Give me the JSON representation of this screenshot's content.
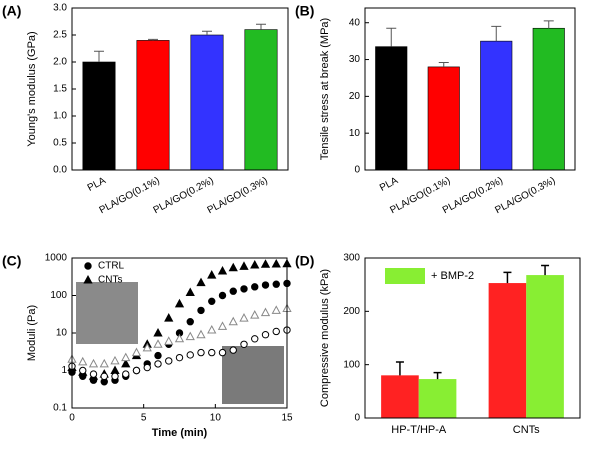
{
  "chart_data": [
    {
      "type": "bar",
      "label": "(A)",
      "ylabel": "Young's modulus (GPa)",
      "categories": [
        "PLA",
        "PLA/GO(0.1%)",
        "PLA/GO(0.2%)",
        "PLA/GO(0.3%)"
      ],
      "values": [
        2.0,
        2.4,
        2.5,
        2.6
      ],
      "errors": [
        0.2,
        0.02,
        0.07,
        0.1
      ],
      "colors": [
        "#000000",
        "#ff0000",
        "#3333ff",
        "#22bb22"
      ],
      "ylim": [
        0,
        3.0
      ],
      "yticks": [
        {
          "value": 0,
          "label": "0.0"
        },
        0.5,
        {
          "value": 1,
          "label": "1.0"
        },
        1.5,
        {
          "value": 2,
          "label": "2.0"
        },
        2.5,
        {
          "value": 3,
          "label": "3.0"
        }
      ]
    },
    {
      "type": "bar",
      "label": "(B)",
      "ylabel": "Tensile stress at break (MPa)",
      "categories": [
        "PLA",
        "PLA/GO(0.1%)",
        "PLA/GO(0.2%)",
        "PLA/GO(0.3%)"
      ],
      "values": [
        33.5,
        28,
        35,
        38.5
      ],
      "errors": [
        5,
        1.2,
        4,
        2
      ],
      "colors": [
        "#000000",
        "#ff0000",
        "#3333ff",
        "#22bb22"
      ],
      "ylim": [
        0,
        44
      ],
      "yticks": [
        0,
        10,
        20,
        30,
        40
      ]
    },
    {
      "type": "scatter",
      "label": "(C)",
      "xlabel": "Time (min)",
      "ylabel": "Moduli (Pa)",
      "log_y": true,
      "xlim": [
        0,
        15
      ],
      "ylim": [
        0.1,
        1000
      ],
      "xticks": [
        0,
        5,
        10,
        15
      ],
      "yticks": [
        0.1,
        1,
        10,
        100,
        1000
      ],
      "x": [
        0,
        0.75,
        1.5,
        2.25,
        3,
        3.75,
        4.5,
        5.25,
        6,
        6.75,
        7.5,
        8.25,
        9,
        9.75,
        10.5,
        11.25,
        12,
        12.75,
        13.5,
        14.25,
        15
      ],
      "series": [
        {
          "name": "CTRL",
          "marker": "circle",
          "filled": true,
          "color": "#000000",
          "values": [
            0.9,
            0.7,
            0.55,
            0.5,
            0.55,
            0.7,
            1,
            1.5,
            2.5,
            5,
            10,
            20,
            40,
            70,
            100,
            130,
            150,
            170,
            190,
            200,
            210
          ]
        },
        {
          "name": "CNTs",
          "marker": "triangle",
          "filled": true,
          "color": "#000000",
          "values": [
            1.2,
            0.9,
            0.7,
            0.8,
            1,
            1.5,
            2.5,
            5,
            10,
            25,
            60,
            120,
            220,
            350,
            450,
            550,
            600,
            650,
            680,
            690,
            700
          ]
        },
        {
          "marker": "circle",
          "filled": false,
          "color": "#000000",
          "values": [
            1.3,
            1,
            0.8,
            0.7,
            0.7,
            0.8,
            1,
            1.2,
            1.5,
            1.8,
            2.2,
            2.6,
            3,
            3,
            3,
            3.5,
            5,
            7,
            9,
            11,
            12
          ]
        },
        {
          "marker": "triangle",
          "filled": false,
          "color": "#888888",
          "values": [
            2,
            1.7,
            1.5,
            1.5,
            1.8,
            2.2,
            3,
            4,
            5,
            6,
            7,
            8,
            9,
            12,
            15,
            20,
            25,
            30,
            35,
            40,
            45
          ]
        }
      ]
    },
    {
      "type": "grouped_bar",
      "label": "(D)",
      "ylabel": "Compressive modulus (kPa)",
      "categories": [
        "HP-T/HP-A",
        "CNTs"
      ],
      "ylim": [
        0,
        300
      ],
      "yticks": [
        0,
        100,
        200,
        300
      ],
      "series": [
        {
          "color": "#ff2222",
          "values": [
            80,
            253
          ],
          "errors": [
            25,
            20
          ]
        },
        {
          "name": "+ BMP-2",
          "color": "#88ee33",
          "values": [
            73,
            268
          ],
          "errors": [
            12,
            18
          ]
        }
      ]
    }
  ]
}
